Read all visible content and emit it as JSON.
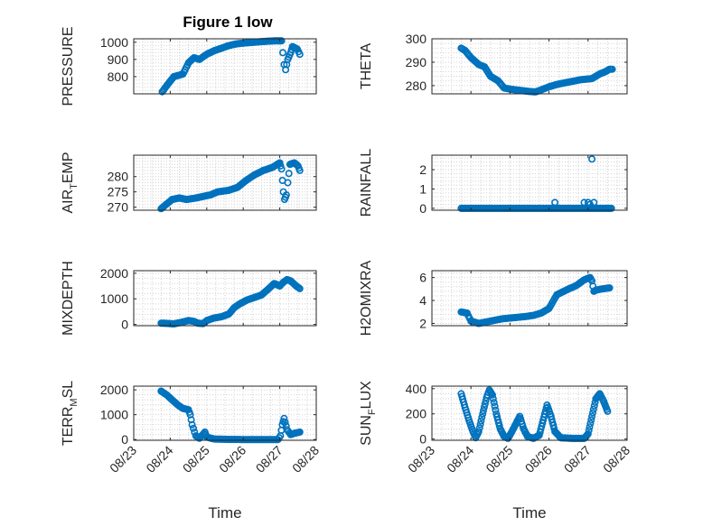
{
  "figure": {
    "title": "Figure 1 low"
  },
  "chart_data": [
    {
      "id": "pressure",
      "type": "scatter",
      "title": "Figure 1 low",
      "ylabel_main": "PRESSURE",
      "ylabel_sub": "",
      "xlim": [
        0,
        5
      ],
      "ylim": [
        700,
        1020
      ],
      "yticks": [
        800,
        900,
        1000
      ],
      "xticks": [
        0,
        1,
        2,
        3,
        4,
        5
      ],
      "xticklabels": [
        "08/23",
        "08/24",
        "08/25",
        "08/26",
        "08/27",
        "08/28"
      ],
      "xlabel": "",
      "grid": true,
      "color": "#0072BD",
      "keypoints": [
        [
          0.78,
          712
        ],
        [
          0.95,
          760
        ],
        [
          1.1,
          800
        ],
        [
          1.35,
          815
        ],
        [
          1.5,
          880
        ],
        [
          1.65,
          910
        ],
        [
          1.8,
          900
        ],
        [
          2.0,
          930
        ],
        [
          2.2,
          950
        ],
        [
          2.4,
          965
        ],
        [
          2.6,
          980
        ],
        [
          2.8,
          990
        ],
        [
          3.0,
          995
        ],
        [
          3.3,
          1000
        ],
        [
          3.6,
          1005
        ],
        [
          3.85,
          1008
        ],
        [
          4.05,
          1008
        ],
        [
          4.12,
          870
        ],
        [
          4.16,
          840
        ],
        [
          4.22,
          900
        ],
        [
          4.3,
          940
        ],
        [
          4.35,
          975
        ],
        [
          4.48,
          960
        ],
        [
          4.55,
          930
        ]
      ],
      "step": 0.03
    },
    {
      "id": "theta",
      "type": "scatter",
      "title": "",
      "ylabel_main": "THETA",
      "ylabel_sub": "",
      "xlim": [
        0,
        5
      ],
      "ylim": [
        276.5,
        300
      ],
      "yticks": [
        280,
        290,
        300
      ],
      "xticks": [
        0,
        1,
        2,
        3,
        4,
        5
      ],
      "xticklabels": [
        "08/23",
        "08/24",
        "08/25",
        "08/26",
        "08/27",
        "08/28"
      ],
      "xlabel": "",
      "grid": true,
      "color": "#0072BD",
      "keypoints": [
        [
          0.75,
          296
        ],
        [
          0.85,
          295
        ],
        [
          1.0,
          292
        ],
        [
          1.2,
          289
        ],
        [
          1.35,
          288
        ],
        [
          1.5,
          284
        ],
        [
          1.7,
          282
        ],
        [
          1.85,
          279
        ],
        [
          2.0,
          278.5
        ],
        [
          2.25,
          278
        ],
        [
          2.5,
          277.5
        ],
        [
          2.65,
          277.3
        ],
        [
          2.8,
          278.2
        ],
        [
          3.0,
          279.5
        ],
        [
          3.2,
          280.5
        ],
        [
          3.5,
          281.5
        ],
        [
          3.8,
          282.5
        ],
        [
          4.1,
          283
        ],
        [
          4.3,
          285
        ],
        [
          4.45,
          286
        ],
        [
          4.55,
          287
        ],
        [
          4.62,
          287
        ]
      ],
      "step": 0.03
    },
    {
      "id": "air_temp",
      "type": "scatter",
      "title": "",
      "ylabel_main": "AIR",
      "ylabel_sub": "T",
      "ylabel_tail": "EMP",
      "xlim": [
        0,
        5
      ],
      "ylim": [
        269,
        287
      ],
      "yticks": [
        270,
        275,
        280
      ],
      "xticks": [
        0,
        1,
        2,
        3,
        4,
        5
      ],
      "xticklabels": [
        "08/23",
        "08/24",
        "08/25",
        "08/26",
        "08/27",
        "08/28"
      ],
      "xlabel": "",
      "grid": true,
      "color": "#0072BD",
      "keypoints": [
        [
          0.75,
          269.5
        ],
        [
          0.9,
          271
        ],
        [
          1.05,
          272.5
        ],
        [
          1.25,
          273
        ],
        [
          1.45,
          272.5
        ],
        [
          1.7,
          273
        ],
        [
          1.9,
          273.5
        ],
        [
          2.1,
          274
        ],
        [
          2.3,
          275
        ],
        [
          2.6,
          275.5
        ],
        [
          2.85,
          276.5
        ],
        [
          3.05,
          278.5
        ],
        [
          3.3,
          280.5
        ],
        [
          3.55,
          282
        ],
        [
          3.8,
          283
        ],
        [
          4.0,
          284.5
        ],
        [
          4.05,
          282.5
        ],
        [
          4.1,
          275
        ],
        [
          4.13,
          272.5
        ],
        [
          4.18,
          274
        ],
        [
          4.22,
          278
        ],
        [
          4.28,
          284
        ],
        [
          4.4,
          284.5
        ],
        [
          4.5,
          283.5
        ],
        [
          4.55,
          282
        ]
      ],
      "step": 0.03
    },
    {
      "id": "rainfall",
      "type": "scatter",
      "title": "",
      "ylabel_main": "RAINFALL",
      "ylabel_sub": "",
      "xlim": [
        0,
        5
      ],
      "ylim": [
        -0.1,
        2.75
      ],
      "yticks": [
        0,
        1,
        2
      ],
      "xticks": [
        0,
        1,
        2,
        3,
        4,
        5
      ],
      "xticklabels": [
        "08/23",
        "08/24",
        "08/25",
        "08/26",
        "08/27",
        "08/28"
      ],
      "xlabel": "",
      "grid": true,
      "color": "#0072BD",
      "keypoints": [
        [
          0.75,
          0
        ],
        [
          4.6,
          0
        ]
      ],
      "extra_points": [
        [
          3.15,
          0.3
        ],
        [
          3.9,
          0.3
        ],
        [
          4.0,
          0.3
        ],
        [
          4.05,
          0.2
        ],
        [
          4.1,
          2.55
        ],
        [
          4.15,
          0.3
        ]
      ],
      "step": 0.02
    },
    {
      "id": "mixdepth",
      "type": "scatter",
      "title": "",
      "ylabel_main": "MIXDEPTH",
      "ylabel_sub": "",
      "xlim": [
        0,
        5
      ],
      "ylim": [
        -50,
        2100
      ],
      "yticks": [
        0,
        1000,
        2000
      ],
      "xticks": [
        0,
        1,
        2,
        3,
        4,
        5
      ],
      "xticklabels": [
        "08/23",
        "08/24",
        "08/25",
        "08/26",
        "08/27",
        "08/28"
      ],
      "xlabel": "",
      "grid": true,
      "color": "#0072BD",
      "keypoints": [
        [
          0.75,
          50
        ],
        [
          0.9,
          40
        ],
        [
          1.1,
          20
        ],
        [
          1.3,
          80
        ],
        [
          1.5,
          150
        ],
        [
          1.65,
          120
        ],
        [
          1.75,
          50
        ],
        [
          1.9,
          30
        ],
        [
          2.0,
          150
        ],
        [
          2.2,
          250
        ],
        [
          2.4,
          300
        ],
        [
          2.6,
          400
        ],
        [
          2.75,
          650
        ],
        [
          2.9,
          800
        ],
        [
          3.1,
          950
        ],
        [
          3.3,
          1050
        ],
        [
          3.5,
          1150
        ],
        [
          3.7,
          1400
        ],
        [
          3.85,
          1600
        ],
        [
          4.0,
          1500
        ],
        [
          4.1,
          1650
        ],
        [
          4.2,
          1750
        ],
        [
          4.3,
          1700
        ],
        [
          4.45,
          1500
        ],
        [
          4.55,
          1400
        ]
      ],
      "step": 0.03
    },
    {
      "id": "h2omixra",
      "type": "scatter",
      "title": "",
      "ylabel_main": "H2OMIXRA",
      "ylabel_sub": "",
      "xlim": [
        0,
        5
      ],
      "ylim": [
        1.8,
        6.6
      ],
      "yticks": [
        2,
        4,
        6
      ],
      "xticks": [
        0,
        1,
        2,
        3,
        4,
        5
      ],
      "xticklabels": [
        "08/23",
        "08/24",
        "08/25",
        "08/26",
        "08/27",
        "08/28"
      ],
      "xlabel": "",
      "grid": true,
      "color": "#0072BD",
      "keypoints": [
        [
          0.75,
          3.0
        ],
        [
          0.9,
          2.9
        ],
        [
          1.0,
          2.2
        ],
        [
          1.2,
          2.0
        ],
        [
          1.5,
          2.2
        ],
        [
          1.8,
          2.4
        ],
        [
          2.1,
          2.5
        ],
        [
          2.4,
          2.6
        ],
        [
          2.6,
          2.7
        ],
        [
          2.8,
          2.9
        ],
        [
          3.0,
          3.3
        ],
        [
          3.2,
          4.5
        ],
        [
          3.5,
          5.0
        ],
        [
          3.7,
          5.3
        ],
        [
          3.9,
          5.8
        ],
        [
          4.05,
          6.0
        ],
        [
          4.1,
          5.7
        ],
        [
          4.15,
          4.8
        ],
        [
          4.2,
          4.9
        ],
        [
          4.35,
          5.0
        ],
        [
          4.55,
          5.1
        ]
      ],
      "step": 0.03
    },
    {
      "id": "terr_msl",
      "type": "scatter",
      "title": "",
      "ylabel_main": "TERR",
      "ylabel_sub": "M",
      "ylabel_tail": "SL",
      "xlim": [
        0,
        5
      ],
      "ylim": [
        -30,
        2150
      ],
      "yticks": [
        0,
        1000,
        2000
      ],
      "xticks": [
        0,
        1,
        2,
        3,
        4,
        5
      ],
      "xticklabels": [
        "08/23",
        "08/24",
        "08/25",
        "08/26",
        "08/27",
        "08/28"
      ],
      "xlabel": "Time",
      "grid": true,
      "color": "#0072BD",
      "keypoints": [
        [
          0.75,
          1950
        ],
        [
          0.9,
          1800
        ],
        [
          1.05,
          1600
        ],
        [
          1.2,
          1400
        ],
        [
          1.35,
          1250
        ],
        [
          1.5,
          1200
        ],
        [
          1.55,
          1000
        ],
        [
          1.6,
          600
        ],
        [
          1.7,
          150
        ],
        [
          1.8,
          50
        ],
        [
          1.95,
          300
        ],
        [
          2.0,
          100
        ],
        [
          2.2,
          20
        ],
        [
          2.6,
          5
        ],
        [
          3.0,
          0
        ],
        [
          3.5,
          0
        ],
        [
          3.95,
          0
        ],
        [
          4.02,
          150
        ],
        [
          4.07,
          600
        ],
        [
          4.12,
          850
        ],
        [
          4.2,
          400
        ],
        [
          4.3,
          200
        ],
        [
          4.4,
          250
        ],
        [
          4.55,
          300
        ]
      ],
      "step": 0.03
    },
    {
      "id": "sun_flux",
      "type": "scatter",
      "title": "",
      "ylabel_main": "SUN",
      "ylabel_sub": "F",
      "ylabel_tail": "LUX",
      "xlim": [
        0,
        5
      ],
      "ylim": [
        -10,
        420
      ],
      "yticks": [
        0,
        200,
        400
      ],
      "xticks": [
        0,
        1,
        2,
        3,
        4,
        5
      ],
      "xticklabels": [
        "08/23",
        "08/24",
        "08/25",
        "08/26",
        "08/27",
        "08/28"
      ],
      "xlabel": "Time",
      "grid": true,
      "color": "#0072BD",
      "keypoints": [
        [
          0.75,
          360
        ],
        [
          0.85,
          250
        ],
        [
          0.95,
          150
        ],
        [
          1.05,
          60
        ],
        [
          1.12,
          10
        ],
        [
          1.2,
          60
        ],
        [
          1.3,
          200
        ],
        [
          1.4,
          330
        ],
        [
          1.47,
          390
        ],
        [
          1.55,
          350
        ],
        [
          1.65,
          200
        ],
        [
          1.75,
          80
        ],
        [
          1.85,
          20
        ],
        [
          1.95,
          5
        ],
        [
          2.05,
          60
        ],
        [
          2.15,
          120
        ],
        [
          2.25,
          180
        ],
        [
          2.35,
          80
        ],
        [
          2.45,
          20
        ],
        [
          2.6,
          5
        ],
        [
          2.75,
          30
        ],
        [
          2.85,
          150
        ],
        [
          2.95,
          270
        ],
        [
          3.05,
          180
        ],
        [
          3.15,
          60
        ],
        [
          3.3,
          10
        ],
        [
          3.6,
          5
        ],
        [
          3.9,
          5
        ],
        [
          4.0,
          40
        ],
        [
          4.1,
          180
        ],
        [
          4.2,
          320
        ],
        [
          4.3,
          360
        ],
        [
          4.4,
          300
        ],
        [
          4.5,
          220
        ]
      ],
      "step": 0.022
    }
  ]
}
